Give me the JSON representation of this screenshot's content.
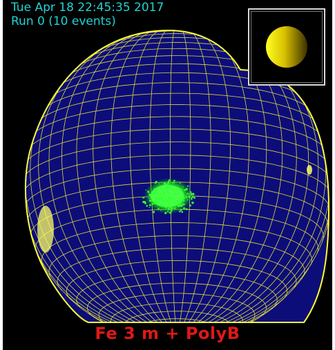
{
  "info": {
    "date": "Tue Apr 18 22:45:35 2017",
    "run": "Run 0 (10 events)"
  },
  "caption": "Fe 3 m + PolyB",
  "colors": {
    "background": "#000000",
    "text": "#22d3d3",
    "detector_fill": "#0d0d7a",
    "detector_wire": "#ffff33",
    "event_hits": "#33ff33",
    "caption": "#e01818"
  },
  "icons": {
    "preview": "sphere-preview-icon"
  }
}
